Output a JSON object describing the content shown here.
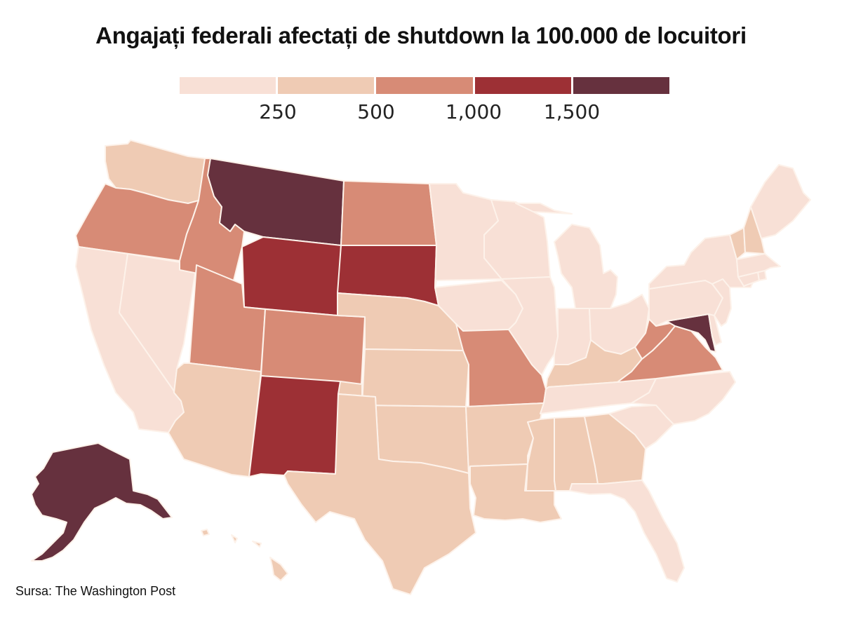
{
  "title": "Angajați federali afectați de shutdown la 100.000 de locuitori",
  "legend": {
    "bins": [
      {
        "id": 0,
        "color": "#f8e0d6"
      },
      {
        "id": 1,
        "color": "#efcbb4"
      },
      {
        "id": 2,
        "color": "#d78b76"
      },
      {
        "id": 3,
        "color": "#9d3035"
      },
      {
        "id": 4,
        "color": "#66313e"
      }
    ],
    "labels": [
      "250",
      "500",
      "1,000",
      "1,500"
    ]
  },
  "chart_data": {
    "type": "choropleth",
    "title": "Angajați federali afectați de shutdown la 100.000 de locuitori",
    "legend_thresholds": [
      250,
      500,
      1000,
      1500
    ],
    "states": [
      {
        "state": "Washington",
        "bin": 1
      },
      {
        "state": "Oregon",
        "bin": 2
      },
      {
        "state": "California",
        "bin": 0
      },
      {
        "state": "Nevada",
        "bin": 0
      },
      {
        "state": "Idaho",
        "bin": 2
      },
      {
        "state": "Montana",
        "bin": 4
      },
      {
        "state": "Wyoming",
        "bin": 3
      },
      {
        "state": "Utah",
        "bin": 2
      },
      {
        "state": "Colorado",
        "bin": 2
      },
      {
        "state": "Arizona",
        "bin": 1
      },
      {
        "state": "New Mexico",
        "bin": 3
      },
      {
        "state": "North Dakota",
        "bin": 2
      },
      {
        "state": "South Dakota",
        "bin": 3
      },
      {
        "state": "Nebraska",
        "bin": 1
      },
      {
        "state": "Kansas",
        "bin": 1
      },
      {
        "state": "Oklahoma",
        "bin": 1
      },
      {
        "state": "Texas",
        "bin": 1
      },
      {
        "state": "Minnesota",
        "bin": 0
      },
      {
        "state": "Iowa",
        "bin": 0
      },
      {
        "state": "Missouri",
        "bin": 2
      },
      {
        "state": "Arkansas",
        "bin": 1
      },
      {
        "state": "Louisiana",
        "bin": 1
      },
      {
        "state": "Wisconsin",
        "bin": 0
      },
      {
        "state": "Illinois",
        "bin": 0
      },
      {
        "state": "Michigan",
        "bin": 0
      },
      {
        "state": "Indiana",
        "bin": 0
      },
      {
        "state": "Ohio",
        "bin": 0
      },
      {
        "state": "Kentucky",
        "bin": 1
      },
      {
        "state": "Tennessee",
        "bin": 0
      },
      {
        "state": "Mississippi",
        "bin": 1
      },
      {
        "state": "Alabama",
        "bin": 1
      },
      {
        "state": "Georgia",
        "bin": 1
      },
      {
        "state": "Florida",
        "bin": 0
      },
      {
        "state": "South Carolina",
        "bin": 0
      },
      {
        "state": "North Carolina",
        "bin": 0
      },
      {
        "state": "Virginia",
        "bin": 2
      },
      {
        "state": "West Virginia",
        "bin": 2
      },
      {
        "state": "Maryland",
        "bin": 4
      },
      {
        "state": "Delaware",
        "bin": 0
      },
      {
        "state": "Pennsylvania",
        "bin": 0
      },
      {
        "state": "New Jersey",
        "bin": 0
      },
      {
        "state": "New York",
        "bin": 0
      },
      {
        "state": "Connecticut",
        "bin": 0
      },
      {
        "state": "Rhode Island",
        "bin": 0
      },
      {
        "state": "Massachusetts",
        "bin": 0
      },
      {
        "state": "Vermont",
        "bin": 1
      },
      {
        "state": "New Hampshire",
        "bin": 1
      },
      {
        "state": "Maine",
        "bin": 0
      },
      {
        "state": "Alaska",
        "bin": 4
      },
      {
        "state": "Hawaii",
        "bin": 1
      }
    ]
  },
  "source": "Sursa: The Washington Post"
}
